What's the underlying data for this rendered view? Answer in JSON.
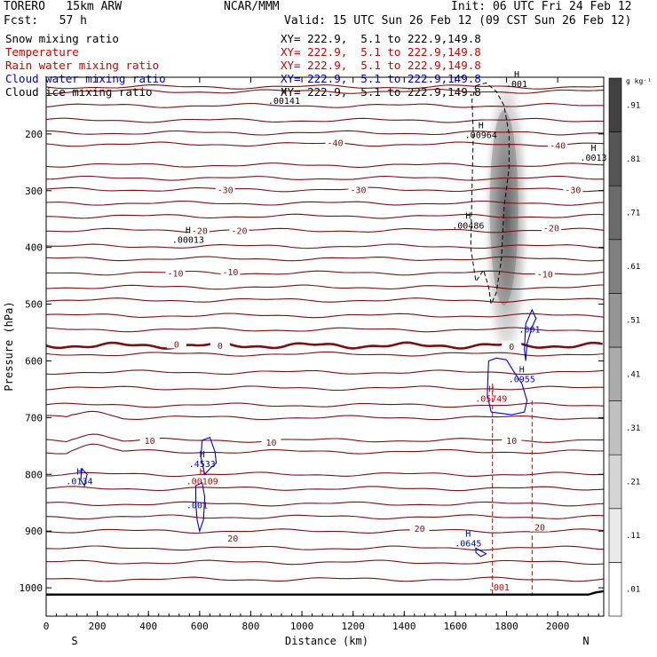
{
  "header": {
    "model": "TORERO   15km ARW",
    "center": "NCAR/MMM",
    "init": "Init: 06 UTC Fri 24 Feb 12",
    "fcst": "Fcst:   57 h",
    "valid": "Valid: 15 UTC Sun 26 Feb 12 (09 CST Sun 26 Feb 12)"
  },
  "legend": [
    {
      "name": "Snow mixing ratio",
      "xy": "XY= 222.9,  5.1 to 222.9,149.8",
      "color": "#000000"
    },
    {
      "name": "Temperature",
      "xy": "XY= 222.9,  5.1 to 222.9,149.8",
      "color": "#cc0000"
    },
    {
      "name": "Rain water mixing ratio",
      "xy": "XY= 222.9,  5.1 to 222.9,149.8",
      "color": "#cc0000"
    },
    {
      "name": "Cloud water mixing ratio",
      "xy": "XY= 222.9,  5.1 to 222.9,149.8",
      "color": "#0000cc"
    },
    {
      "name": "Cloud ice mixing ratio",
      "xy": "XY= 222.9,  5.1 to 222.9,149.8",
      "color": "#000000"
    }
  ],
  "axes": {
    "xlabel": "Distance (km)",
    "ylabel": "Pressure (hPa)",
    "x_left_end": "S",
    "x_right_end": "N",
    "colorbar_unit": "g kg⁻¹"
  },
  "chart_data": {
    "type": "cross-section",
    "x": {
      "min": 0,
      "max": 2180,
      "ticks": [
        0,
        200,
        400,
        600,
        800,
        1000,
        1200,
        1400,
        1600,
        1800,
        2000
      ]
    },
    "y": {
      "min": 100,
      "max": 1050,
      "inverted": true,
      "ticks": [
        200,
        300,
        400,
        500,
        600,
        700,
        800,
        900,
        1000
      ]
    },
    "colorbar": {
      "ticks": [
        ".01",
        ".11",
        ".21",
        ".31",
        ".41",
        ".51",
        ".61",
        ".71",
        ".81",
        ".91"
      ],
      "levels": [
        0.01,
        0.11,
        0.21,
        0.31,
        0.41,
        0.51,
        0.61,
        0.71,
        0.81,
        0.91
      ]
    },
    "temperature_labels": [
      {
        "text": "-40",
        "x": 1130,
        "p": 215
      },
      {
        "text": "-40",
        "x": 2000,
        "p": 220
      },
      {
        "text": "-30",
        "x": 700,
        "p": 298
      },
      {
        "text": "-30",
        "x": 1220,
        "p": 298
      },
      {
        "text": "-30",
        "x": 2060,
        "p": 298
      },
      {
        "text": "-20",
        "x": 600,
        "p": 370
      },
      {
        "text": "-20",
        "x": 755,
        "p": 370
      },
      {
        "text": "-20",
        "x": 1975,
        "p": 365
      },
      {
        "text": "-10",
        "x": 505,
        "p": 445
      },
      {
        "text": "-10",
        "x": 720,
        "p": 443
      },
      {
        "text": "-10",
        "x": 1950,
        "p": 447
      },
      {
        "text": "0",
        "x": 510,
        "p": 570
      },
      {
        "text": "0",
        "x": 680,
        "p": 573
      },
      {
        "text": "0",
        "x": 1820,
        "p": 574
      },
      {
        "text": "10",
        "x": 405,
        "p": 740
      },
      {
        "text": "10",
        "x": 880,
        "p": 743
      },
      {
        "text": "10",
        "x": 1820,
        "p": 740
      },
      {
        "text": "20",
        "x": 730,
        "p": 912
      },
      {
        "text": "20",
        "x": 1460,
        "p": 895
      },
      {
        "text": "20",
        "x": 1930,
        "p": 893
      }
    ],
    "maxima": [
      {
        "text": "H\n.00141",
        "x": 930,
        "p": 130,
        "color": "#000000"
      },
      {
        "text": "H\n.00964",
        "x": 1700,
        "p": 190,
        "color": "#000000"
      },
      {
        "text": "H\n.0013",
        "x": 2140,
        "p": 230,
        "color": "#000000"
      },
      {
        "text": "H\n.00486",
        "x": 1650,
        "p": 350,
        "color": "#000000"
      },
      {
        "text": "H\n.00013",
        "x": 555,
        "p": 375,
        "color": "#000000"
      },
      {
        "text": "H\n.001",
        "x": 1840,
        "p": 100,
        "color": "#000000"
      },
      {
        "text": "H\n.0134",
        "x": 130,
        "p": 800,
        "color": "#0000cc"
      },
      {
        "text": "H\n.4533",
        "x": 610,
        "p": 770,
        "color": "#0000cc"
      },
      {
        "text": "H\n.00109",
        "x": 610,
        "p": 800,
        "color": "#cc0000"
      },
      {
        "text": "H\n.0955",
        "x": 1860,
        "p": 620,
        "color": "#0000cc"
      },
      {
        "text": "H\n.05749",
        "x": 1740,
        "p": 655,
        "color": "#cc0000"
      },
      {
        "text": "H\n.0645",
        "x": 1650,
        "p": 910,
        "color": "#0000cc"
      }
    ],
    "contour_values": [
      {
        "text": ".001",
        "x": 1890,
        "p": 550,
        "color": "#0000cc"
      },
      {
        "text": ".001",
        "x": 590,
        "p": 860,
        "color": "#0000cc"
      },
      {
        "text": ".001",
        "x": 1770,
        "p": 1005,
        "color": "#cc0000"
      }
    ]
  }
}
